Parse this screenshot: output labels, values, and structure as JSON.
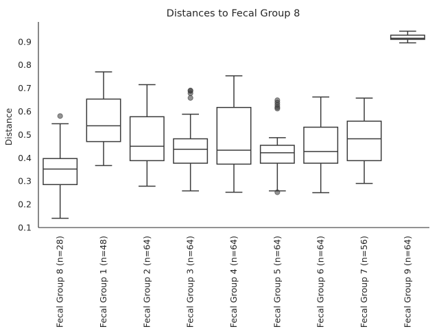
{
  "chart_data": {
    "type": "box",
    "title": "Distances to Fecal Group 8",
    "xlabel": "",
    "ylabel": "Distance",
    "ylim": [
      0.1,
      0.985
    ],
    "yticks": [
      "0.1",
      "0.2",
      "0.3",
      "0.4",
      "0.5",
      "0.6",
      "0.7",
      "0.8",
      "0.9"
    ],
    "grid": false,
    "box_color": "#ffffff",
    "line_color": "#3a3a3a",
    "categories": [
      "Fecal Group 8 (n=28)",
      "Fecal Group 1 (n=48)",
      "Fecal Group 2 (n=64)",
      "Fecal Group 3 (n=64)",
      "Fecal Group 4 (n=64)",
      "Fecal Group 5 (n=64)",
      "Fecal Group 6 (n=64)",
      "Fecal Group 7 (n=56)",
      "Fecal Group 9 (n=64)"
    ],
    "boxes": [
      {
        "whisker_low": 0.14,
        "q1": 0.285,
        "median": 0.352,
        "q3": 0.397,
        "whisker_high": 0.547,
        "outliers": [
          0.58
        ]
      },
      {
        "whisker_low": 0.367,
        "q1": 0.47,
        "median": 0.538,
        "q3": 0.653,
        "whisker_high": 0.77,
        "outliers": []
      },
      {
        "whisker_low": 0.278,
        "q1": 0.388,
        "median": 0.45,
        "q3": 0.577,
        "whisker_high": 0.715,
        "outliers": []
      },
      {
        "whisker_low": 0.258,
        "q1": 0.377,
        "median": 0.437,
        "q3": 0.482,
        "whisker_high": 0.588,
        "outliers": [
          0.658,
          0.678,
          0.688,
          0.69
        ]
      },
      {
        "whisker_low": 0.252,
        "q1": 0.373,
        "median": 0.433,
        "q3": 0.617,
        "whisker_high": 0.753,
        "outliers": []
      },
      {
        "whisker_low": 0.258,
        "q1": 0.377,
        "median": 0.422,
        "q3": 0.454,
        "whisker_high": 0.487,
        "outliers": [
          0.612,
          0.618,
          0.628,
          0.638,
          0.648,
          0.252
        ]
      },
      {
        "whisker_low": 0.25,
        "q1": 0.377,
        "median": 0.427,
        "q3": 0.532,
        "whisker_high": 0.662,
        "outliers": []
      },
      {
        "whisker_low": 0.29,
        "q1": 0.388,
        "median": 0.482,
        "q3": 0.558,
        "whisker_high": 0.657,
        "outliers": []
      },
      {
        "whisker_low": 0.895,
        "q1": 0.91,
        "median": 0.915,
        "q3": 0.928,
        "whisker_high": 0.945,
        "outliers": []
      }
    ]
  }
}
